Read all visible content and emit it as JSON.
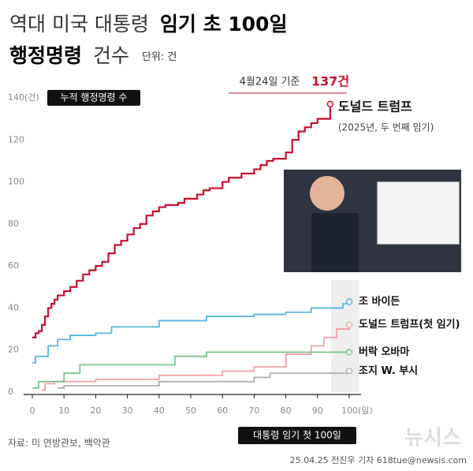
{
  "chart_data": {
    "type": "step-line",
    "title": [
      "역대 미국 대통령",
      "임기 초 100일",
      "행정명령",
      "건수"
    ],
    "unit": "단위: 건",
    "y_label": "누적 행정명령 수",
    "x_label": "대통령 임기 첫 100일",
    "date_note": "4월24일 기준",
    "source": "자료: 미 연방관보, 백악관",
    "credit": "25.04.25 전진우 기자 618tue@newsis.com",
    "watermark": "뉴시스",
    "xlim": [
      0,
      100
    ],
    "ylim": [
      0,
      140
    ],
    "xticks": [
      0,
      10,
      20,
      30,
      40,
      50,
      60,
      70,
      80,
      90,
      {
        "value": 100,
        "label": "100(일)"
      }
    ],
    "yticks": [
      0,
      20,
      40,
      60,
      80,
      100,
      120,
      {
        "value": 140,
        "label": "140(건)"
      }
    ],
    "series": [
      {
        "name": "도널드 트럼프",
        "note": "(2025년, 두 번째 임기)",
        "color": "#c8102e",
        "x": [
          0,
          1,
          2,
          3,
          4,
          5,
          6,
          7,
          8,
          10,
          12,
          14,
          16,
          18,
          20,
          22,
          24,
          26,
          28,
          30,
          32,
          34,
          36,
          38,
          40,
          42,
          46,
          48,
          52,
          54,
          56,
          60,
          62,
          66,
          70,
          72,
          74,
          76,
          80,
          82,
          84,
          86,
          88,
          90,
          94
        ],
        "values": [
          26,
          28,
          29,
          32,
          36,
          40,
          42,
          44,
          46,
          48,
          50,
          53,
          56,
          58,
          60,
          62,
          66,
          70,
          72,
          75,
          78,
          80,
          84,
          86,
          88,
          89,
          90,
          92,
          94,
          96,
          97,
          100,
          102,
          104,
          106,
          108,
          110,
          111,
          114,
          120,
          124,
          126,
          128,
          130,
          137
        ],
        "value_labels": [
          null,
          null,
          null,
          null,
          null,
          null,
          null,
          null,
          null,
          null,
          null,
          null,
          null,
          null,
          null,
          null,
          null,
          null,
          null,
          null,
          null,
          null,
          null,
          null,
          null,
          null,
          null,
          null,
          null,
          null,
          null,
          null,
          null,
          null,
          null,
          null,
          null,
          null,
          null,
          null,
          null,
          null,
          null,
          null,
          "137건"
        ]
      },
      {
        "name": "조 바이든",
        "color": "#5ab4e0",
        "x": [
          0,
          1,
          5,
          8,
          12,
          20,
          25,
          40,
          55,
          70,
          80,
          88,
          98,
          100
        ],
        "values": [
          14,
          17,
          22,
          25,
          27,
          28,
          31,
          34,
          36,
          37,
          38,
          40,
          42,
          43
        ]
      },
      {
        "name": "도널드 트럼프(첫 임기)",
        "color": "#f2a0a8",
        "x": [
          3,
          4,
          7,
          20,
          40,
          60,
          70,
          80,
          88,
          92,
          96,
          100
        ],
        "values": [
          1,
          4,
          5,
          6,
          8,
          10,
          12,
          18,
          22,
          26,
          30,
          32
        ]
      },
      {
        "name": "버락 오바마",
        "color": "#7cc48a",
        "x": [
          0,
          2,
          10,
          15,
          45,
          55,
          100
        ],
        "values": [
          2,
          5,
          9,
          13,
          17,
          19,
          19
        ]
      },
      {
        "name": "조지 W. 부시",
        "color": "#b0b0b0",
        "x": [
          8,
          10,
          30,
          40,
          70,
          75,
          100
        ],
        "values": [
          2,
          3,
          3,
          5,
          7,
          9,
          10
        ]
      }
    ]
  }
}
